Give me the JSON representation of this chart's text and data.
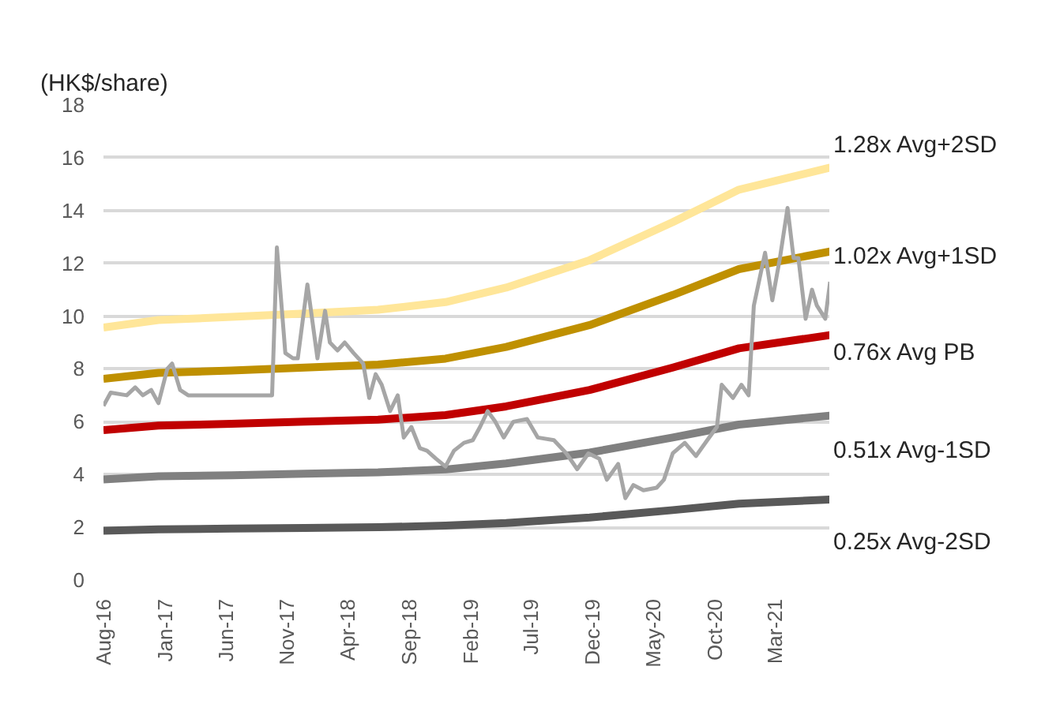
{
  "chart_data": {
    "type": "line",
    "ylabel": "(HK$/share)",
    "grid": "y",
    "xlim": [
      "2016-08-01",
      "2021-07-16"
    ],
    "xticks": [
      {
        "value": "2016-08-01",
        "label": "Aug-16"
      },
      {
        "value": "2017-01-01",
        "label": "Jan-17"
      },
      {
        "value": "2017-06-01",
        "label": "Jun-17"
      },
      {
        "value": "2017-11-01",
        "label": "Nov-17"
      },
      {
        "value": "2018-04-01",
        "label": "Apr-18"
      },
      {
        "value": "2018-09-01",
        "label": "Sep-18"
      },
      {
        "value": "2019-02-01",
        "label": "Feb-19"
      },
      {
        "value": "2019-07-01",
        "label": "Jul-19"
      },
      {
        "value": "2019-12-01",
        "label": "Dec-19"
      },
      {
        "value": "2020-05-01",
        "label": "May-20"
      },
      {
        "value": "2020-10-01",
        "label": "Oct-20"
      },
      {
        "value": "2021-03-01",
        "label": "Mar-21"
      }
    ],
    "ylim": [
      0,
      18
    ],
    "yticks": [
      0,
      2,
      4,
      6,
      8,
      10,
      12,
      14,
      16,
      18
    ],
    "series": [
      {
        "name": "1.28x Avg+2SD",
        "color": "#ffe699",
        "x": [
          "2016-08-01",
          "2016-12-16",
          "2017-06-16",
          "2017-12-16",
          "2018-06-16",
          "2018-12-01",
          "2019-05-01",
          "2019-11-25",
          "2020-06-19",
          "2020-12-01",
          "2021-07-16"
        ],
        "values": [
          9.57,
          9.85,
          9.97,
          10.1,
          10.24,
          10.53,
          11.08,
          12.12,
          13.56,
          14.79,
          15.63
        ]
      },
      {
        "name": "1.02x Avg+1SD",
        "color": "#bf9000",
        "x": [
          "2016-08-01",
          "2016-12-16",
          "2017-06-16",
          "2017-12-16",
          "2018-06-16",
          "2018-12-01",
          "2019-05-01",
          "2019-11-25",
          "2020-06-19",
          "2020-12-01",
          "2021-07-16"
        ],
        "values": [
          7.62,
          7.85,
          7.94,
          8.05,
          8.16,
          8.39,
          8.83,
          9.66,
          10.8,
          11.78,
          12.45
        ]
      },
      {
        "name": "0.76x Avg PB",
        "color": "#c00000",
        "x": [
          "2016-08-01",
          "2016-12-16",
          "2017-06-16",
          "2017-12-16",
          "2018-06-16",
          "2018-12-01",
          "2019-05-01",
          "2019-11-25",
          "2020-06-19",
          "2020-12-01",
          "2021-07-16"
        ],
        "values": [
          5.68,
          5.85,
          5.92,
          6.0,
          6.08,
          6.25,
          6.58,
          7.2,
          8.05,
          8.78,
          9.28
        ]
      },
      {
        "name": "0.51x Avg-1SD",
        "color": "#808080",
        "x": [
          "2016-08-01",
          "2016-12-16",
          "2017-06-16",
          "2017-12-16",
          "2018-06-16",
          "2018-12-01",
          "2019-05-01",
          "2019-11-25",
          "2020-06-19",
          "2020-12-01",
          "2021-07-16"
        ],
        "values": [
          3.81,
          3.93,
          3.97,
          4.03,
          4.08,
          4.19,
          4.42,
          4.83,
          5.4,
          5.89,
          6.23
        ]
      },
      {
        "name": "0.25x Avg-2SD",
        "color": "#595959",
        "x": [
          "2016-08-01",
          "2016-12-16",
          "2017-06-16",
          "2017-12-16",
          "2018-06-16",
          "2018-12-01",
          "2019-05-01",
          "2019-11-25",
          "2020-06-19",
          "2020-12-01",
          "2021-07-16"
        ],
        "values": [
          1.87,
          1.92,
          1.95,
          1.97,
          2.0,
          2.06,
          2.16,
          2.37,
          2.65,
          2.89,
          3.05
        ]
      },
      {
        "color": "#a6a6a6",
        "x": [
          "2016-08-01",
          "2016-08-19",
          "2016-09-28",
          "2016-10-19",
          "2016-11-07",
          "2016-11-28",
          "2016-12-16",
          "2017-01-07",
          "2017-01-19",
          "2017-02-08",
          "2017-02-28",
          "2017-09-25",
          "2017-10-07",
          "2017-10-28",
          "2017-11-16",
          "2017-11-28",
          "2017-12-22",
          "2018-01-16",
          "2018-02-04",
          "2018-02-16",
          "2018-03-07",
          "2018-03-25",
          "2018-04-16",
          "2018-05-10",
          "2018-05-25",
          "2018-06-10",
          "2018-06-25",
          "2018-07-16",
          "2018-08-04",
          "2018-08-19",
          "2018-09-07",
          "2018-09-28",
          "2018-10-16",
          "2018-11-07",
          "2018-12-01",
          "2018-12-22",
          "2019-01-16",
          "2019-02-07",
          "2019-02-25",
          "2019-03-16",
          "2019-04-04",
          "2019-04-25",
          "2019-05-19",
          "2019-06-22",
          "2019-07-19",
          "2019-08-28",
          "2019-09-28",
          "2019-10-25",
          "2019-11-22",
          "2019-12-19",
          "2020-01-07",
          "2020-02-04",
          "2020-02-22",
          "2020-03-13",
          "2020-04-07",
          "2020-05-10",
          "2020-05-28",
          "2020-06-19",
          "2020-07-19",
          "2020-08-16",
          "2020-09-13",
          "2020-10-07",
          "2020-10-19",
          "2020-11-16",
          "2020-12-07",
          "2020-12-25",
          "2021-01-07",
          "2021-02-04",
          "2021-02-22",
          "2021-03-13",
          "2021-04-01",
          "2021-04-16",
          "2021-04-28",
          "2021-05-16",
          "2021-06-01",
          "2021-06-13",
          "2021-07-04",
          "2021-07-16"
        ],
        "values": [
          6.6,
          7.1,
          7.0,
          7.3,
          7.0,
          7.2,
          6.7,
          8.0,
          8.2,
          7.2,
          7.0,
          7.0,
          12.6,
          8.6,
          8.4,
          8.4,
          11.2,
          8.4,
          10.2,
          9.0,
          8.7,
          9.0,
          8.6,
          8.2,
          6.9,
          7.8,
          7.4,
          6.4,
          7.0,
          5.4,
          5.8,
          5.0,
          4.9,
          4.6,
          4.3,
          4.9,
          5.2,
          5.3,
          5.8,
          6.4,
          6.0,
          5.4,
          6.0,
          6.1,
          5.4,
          5.3,
          4.8,
          4.2,
          4.8,
          4.6,
          3.8,
          4.4,
          3.1,
          3.6,
          3.4,
          3.5,
          3.8,
          4.8,
          5.2,
          4.7,
          5.3,
          5.8,
          7.4,
          6.9,
          7.4,
          7.0,
          10.4,
          12.4,
          10.6,
          12.2,
          14.1,
          12.2,
          12.2,
          9.9,
          11.0,
          10.4,
          9.9,
          11.3
        ]
      }
    ]
  }
}
